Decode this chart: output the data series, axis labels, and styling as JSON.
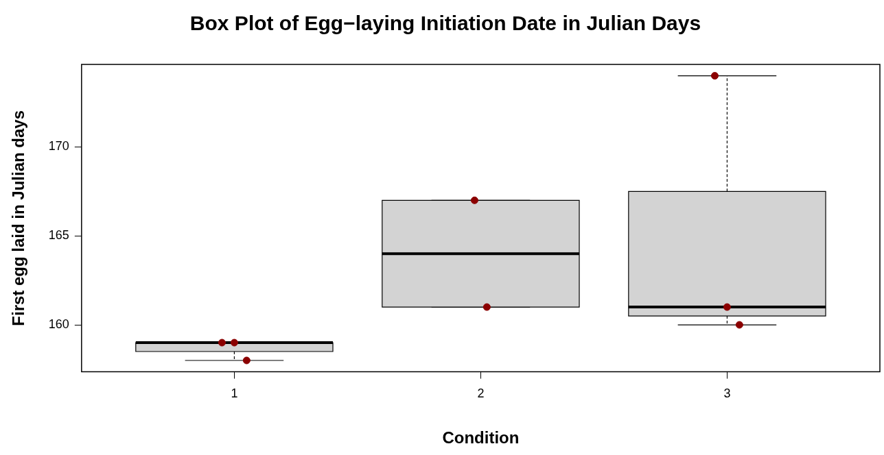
{
  "chart_data": {
    "type": "box",
    "title": "Box Plot of Egg−laying Initiation Date in Julian Days",
    "xlabel": "Condition",
    "ylabel": "First egg laid in Julian days",
    "categories": [
      "1",
      "2",
      "3"
    ],
    "series": [
      {
        "type": "box",
        "color": "#d3d3d3",
        "boxes": [
          {
            "low": 158,
            "q1": 158.5,
            "median": 159,
            "q3": 159,
            "high": 159
          },
          {
            "low": 161,
            "q1": 161,
            "median": 164,
            "q3": 167,
            "high": 167
          },
          {
            "low": 160,
            "q1": 160.5,
            "median": 161,
            "q3": 167.5,
            "high": 174
          }
        ]
      },
      {
        "type": "scatter",
        "color": "#8b0000",
        "x": [
          "1",
          "1",
          "1",
          "2",
          "2",
          "3",
          "3",
          "3"
        ],
        "values": [
          159,
          159,
          158,
          167,
          161,
          174,
          161,
          160
        ]
      }
    ],
    "ylim": [
      157.36,
      174.64
    ],
    "yticks": [
      160,
      165,
      170
    ],
    "grid": false,
    "legend": false
  }
}
